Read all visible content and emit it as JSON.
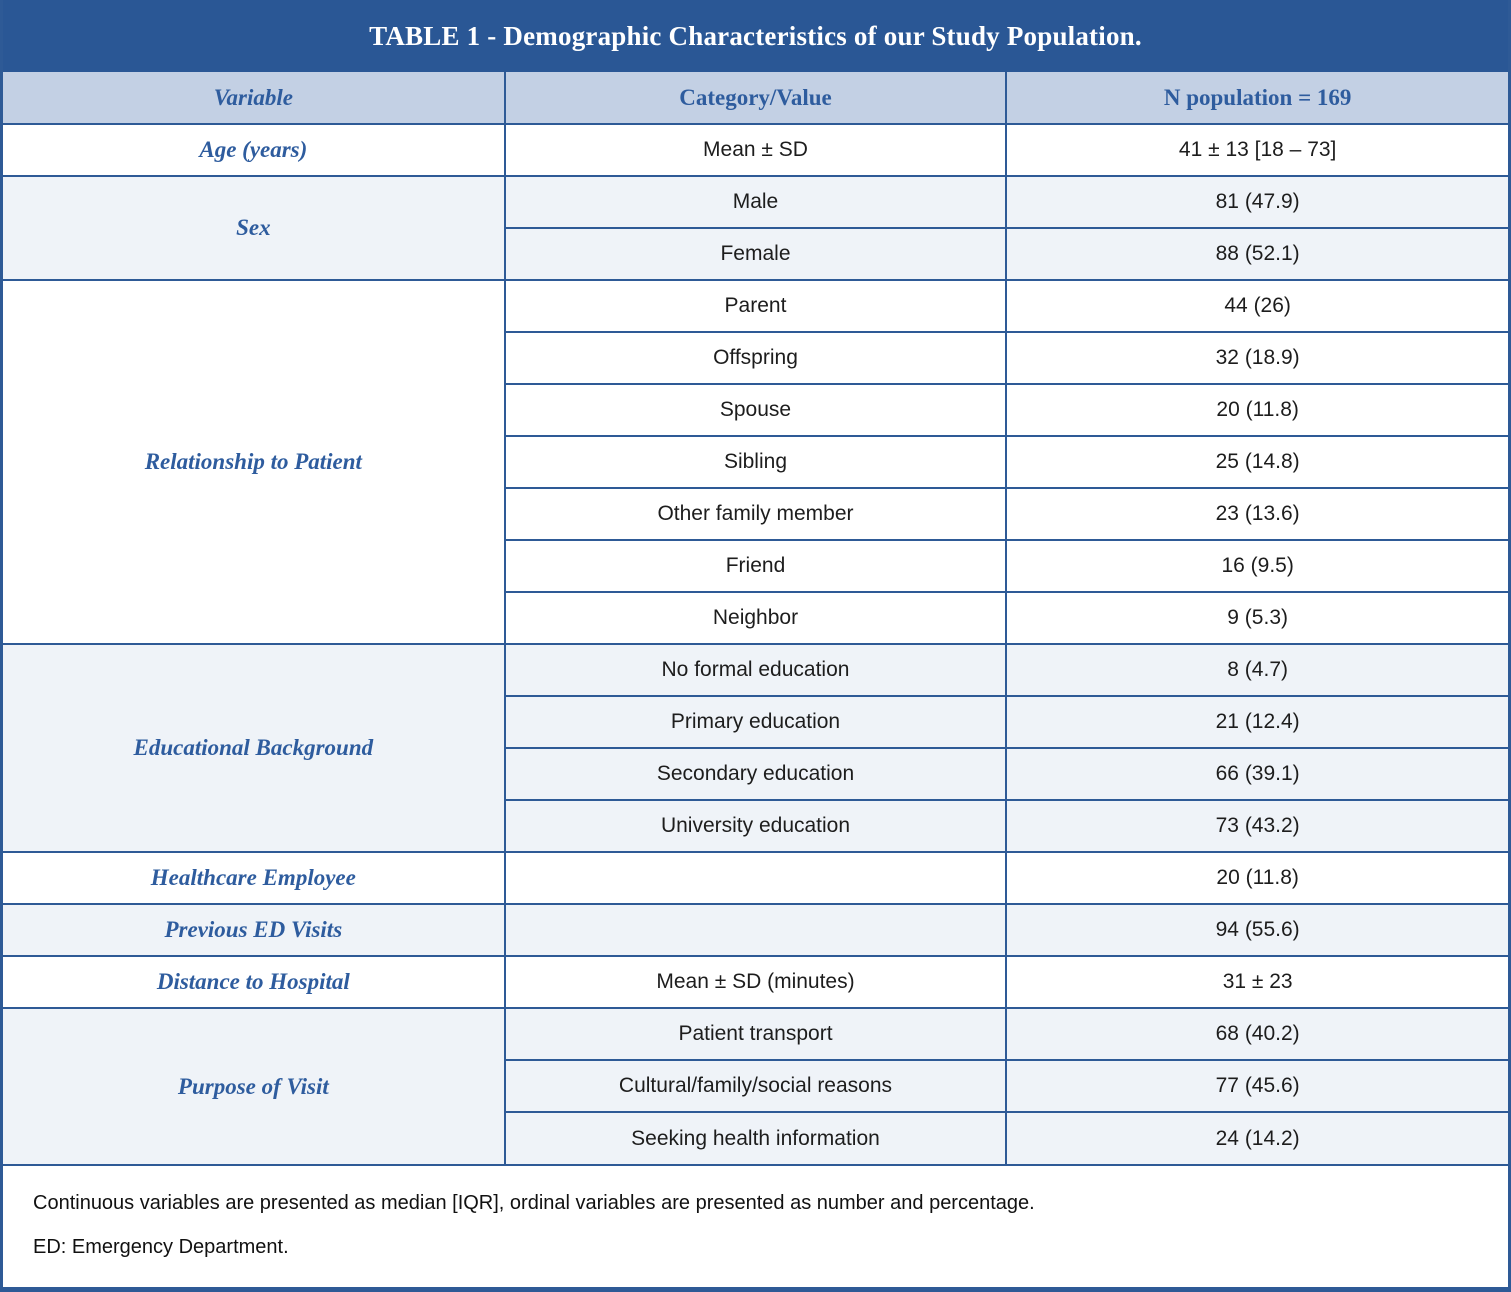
{
  "title": "TABLE 1 - Demographic Characteristics of our Study Population.",
  "columns": [
    "Variable",
    "Category/Value",
    "N population = 169"
  ],
  "groups": [
    {
      "variable": "Age (years)",
      "rows": [
        {
          "category": "Mean ± SD",
          "value": "41 ± 13 [18 – 73]"
        }
      ]
    },
    {
      "variable": "Sex",
      "rows": [
        {
          "category": "Male",
          "value": "81 (47.9)"
        },
        {
          "category": "Female",
          "value": "88 (52.1)"
        }
      ]
    },
    {
      "variable": "Relationship to Patient",
      "rows": [
        {
          "category": "Parent",
          "value": "44 (26)"
        },
        {
          "category": "Offspring",
          "value": "32 (18.9)"
        },
        {
          "category": "Spouse",
          "value": "20 (11.8)"
        },
        {
          "category": "Sibling",
          "value": "25 (14.8)"
        },
        {
          "category": "Other family member",
          "value": "23 (13.6)"
        },
        {
          "category": "Friend",
          "value": "16 (9.5)"
        },
        {
          "category": "Neighbor",
          "value": "9 (5.3)"
        }
      ]
    },
    {
      "variable": "Educational Background",
      "rows": [
        {
          "category": "No formal education",
          "value": "8 (4.7)"
        },
        {
          "category": "Primary education",
          "value": "21 (12.4)"
        },
        {
          "category": "Secondary education",
          "value": "66 (39.1)"
        },
        {
          "category": "University education",
          "value": "73 (43.2)"
        }
      ]
    },
    {
      "variable": "Healthcare Employee",
      "rows": [
        {
          "category": "",
          "value": "20 (11.8)"
        }
      ]
    },
    {
      "variable": "Previous ED Visits",
      "rows": [
        {
          "category": "",
          "value": "94 (55.6)"
        }
      ]
    },
    {
      "variable": "Distance to Hospital",
      "rows": [
        {
          "category": "Mean ± SD (minutes)",
          "value": "31 ± 23"
        }
      ]
    },
    {
      "variable": "Purpose of Visit",
      "rows": [
        {
          "category": "Patient transport",
          "value": "68 (40.2)"
        },
        {
          "category": "Cultural/family/social reasons",
          "value": "77 (45.6)"
        },
        {
          "category": "Seeking health information",
          "value": "24 (14.2)"
        }
      ]
    }
  ],
  "footnotes": [
    "Continuous variables are presented as median [IQR], ordinal variables are presented as number and percentage.",
    "ED: Emergency Department."
  ],
  "colors": {
    "title_bar": "#2a5795",
    "header_bg": "#c3d0e4",
    "group_shade_bg": "#eff3f8",
    "border_line": "#2e5a96",
    "heading_text": "#2e5c9e",
    "body_text": "#1d1d1d"
  }
}
